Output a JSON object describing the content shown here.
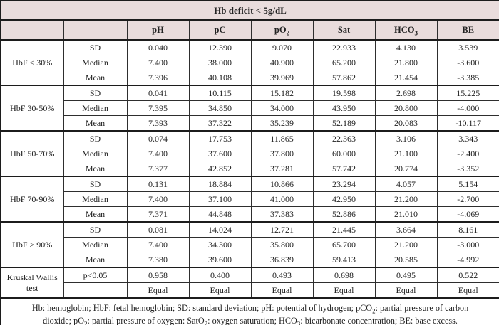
{
  "table": {
    "title": "Hb deficit < 5g/dL",
    "columns": [
      "pH",
      "pC",
      "pO₂",
      "Sat",
      "HCO₃",
      "BE"
    ],
    "groups": [
      {
        "label": "HbF < 30%",
        "rows": [
          {
            "stat": "SD",
            "values": [
              "0.040",
              "12.390",
              "9.070",
              "22.933",
              "4.130",
              "3.539"
            ]
          },
          {
            "stat": "Median",
            "values": [
              "7.400",
              "38.000",
              "40.900",
              "65.200",
              "21.800",
              "-3.600"
            ]
          },
          {
            "stat": "Mean",
            "values": [
              "7.396",
              "40.108",
              "39.969",
              "57.862",
              "21.454",
              "-3.385"
            ]
          }
        ]
      },
      {
        "label": "HbF 30-50%",
        "rows": [
          {
            "stat": "SD",
            "values": [
              "0.041",
              "10.115",
              "15.182",
              "19.598",
              "2.698",
              "15.225"
            ]
          },
          {
            "stat": "Median",
            "values": [
              "7.395",
              "34.850",
              "34.000",
              "43.950",
              "20.800",
              "-4.000"
            ]
          },
          {
            "stat": "Mean",
            "values": [
              "7.393",
              "37.322",
              "35.239",
              "52.189",
              "20.083",
              "-10.117"
            ]
          }
        ]
      },
      {
        "label": "HbF 50-70%",
        "rows": [
          {
            "stat": "SD",
            "values": [
              "0.074",
              "17.753",
              "11.865",
              "22.363",
              "3.106",
              "3.343"
            ]
          },
          {
            "stat": "Median",
            "values": [
              "7.400",
              "37.600",
              "37.800",
              "60.000",
              "21.100",
              "-2.400"
            ]
          },
          {
            "stat": "Mean",
            "values": [
              "7.377",
              "42.852",
              "37.281",
              "57.742",
              "20.774",
              "-3.352"
            ]
          }
        ]
      },
      {
        "label": "HbF 70-90%",
        "rows": [
          {
            "stat": "SD",
            "values": [
              "0.131",
              "18.884",
              "10.866",
              "23.294",
              "4.057",
              "5.154"
            ]
          },
          {
            "stat": "Median",
            "values": [
              "7.400",
              "37.100",
              "41.000",
              "42.950",
              "21.200",
              "-2.700"
            ]
          },
          {
            "stat": "Mean",
            "values": [
              "7.371",
              "44.848",
              "37.383",
              "52.886",
              "21.010",
              "-4.069"
            ]
          }
        ]
      },
      {
        "label": "HbF > 90%",
        "rows": [
          {
            "stat": "SD",
            "values": [
              "0.081",
              "14.024",
              "12.721",
              "21.445",
              "3.664",
              "8.161"
            ]
          },
          {
            "stat": "Median",
            "values": [
              "7.400",
              "34.300",
              "35.800",
              "65.700",
              "21.200",
              "-3.000"
            ]
          },
          {
            "stat": "Mean",
            "values": [
              "7.380",
              "39.600",
              "36.839",
              "59.413",
              "20.585",
              "-4.992"
            ]
          }
        ]
      },
      {
        "label": "Kruskal Wallis test",
        "rows": [
          {
            "stat": "p<0.05",
            "values": [
              "0.958",
              "0.400",
              "0.493",
              "0.698",
              "0.495",
              "0.522"
            ]
          },
          {
            "stat": "",
            "values": [
              "Equal",
              "Equal",
              "Equal",
              "Equal",
              "Equal",
              "Equal"
            ]
          }
        ]
      }
    ],
    "footnote": "Hb: hemoglobin; HbF: fetal hemoglobin; SD: standard deviation; pH: potential of hydrogen; pCO₂: partial pressure of carbon dioxide; pO₂: partial pressure of oxygen: SatO₂: oxygen saturation; HCO₃: bicarbonate concentration; BE: base excess.",
    "colors": {
      "header_bg": "#e9dcdc",
      "border_dark": "#1c1c1c",
      "border_inner": "#2e2e2e",
      "text": "#222222"
    }
  }
}
